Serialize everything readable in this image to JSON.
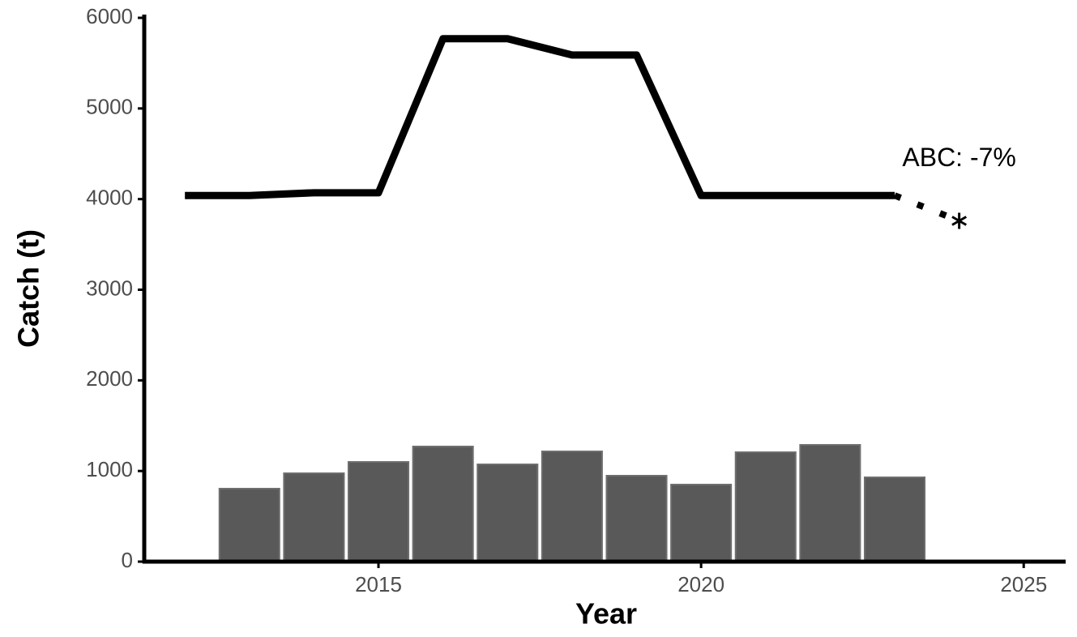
{
  "chart_data": {
    "type": "combo",
    "xlabel": "Year",
    "ylabel": "Catch (t)",
    "xlim": [
      2011.37,
      2025.65
    ],
    "ylim": [
      0,
      6000
    ],
    "xticks": [
      2015,
      2020,
      2025
    ],
    "yticks": [
      0,
      1000,
      2000,
      3000,
      4000,
      5000,
      6000
    ],
    "series": [
      {
        "type": "bar",
        "color": "#595959",
        "x": [
          2013,
          2014,
          2015,
          2016,
          2017,
          2018,
          2019,
          2020,
          2021,
          2022,
          2023
        ],
        "values": [
          805,
          975,
          1100,
          1270,
          1073,
          1216,
          948,
          850,
          1207,
          1288,
          930
        ]
      },
      {
        "type": "line",
        "color": "#000000",
        "x": [
          2012,
          2013,
          2014,
          2015,
          2016,
          2017,
          2018,
          2019,
          2020,
          2021,
          2022,
          2023
        ],
        "values": [
          4040,
          4040,
          4070,
          4070,
          5770,
          5770,
          5590,
          5590,
          4040,
          4040,
          4040,
          4040
        ]
      },
      {
        "type": "projection",
        "color": "#000000",
        "x": [
          2023,
          2024
        ],
        "values": [
          4040,
          3760
        ]
      }
    ],
    "annotation": "ABC: -7%"
  }
}
